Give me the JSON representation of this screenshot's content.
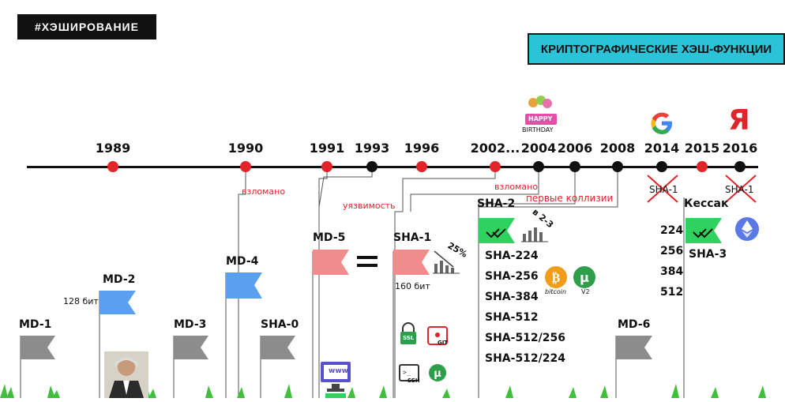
{
  "hashtag": "#ХЭШИРОВАНИЕ",
  "title": "КРИПТОГРАФИЧЕСКИЕ ХЭШ-ФУНКЦИИ",
  "timeline": {
    "years": [
      "1989",
      "1990",
      "1991",
      "1993",
      "1996",
      "2002...",
      "2004",
      "2006",
      "2008",
      "2014",
      "2015",
      "2016"
    ],
    "annotations": {
      "broken_md4": "взломано",
      "vuln_md5": "уязвимость",
      "broken_sha1": "взломано",
      "collisions": "первые коллизии",
      "sha1_crossed_2014": "SHA-1",
      "sha1_crossed_2016": "SHA-1"
    },
    "birthday_top": "HAPPY",
    "birthday_bottom": "BIRTHDAY"
  },
  "algorithms": {
    "md1": "MD-1",
    "md2": "MD-2",
    "md2_bits": "128 бит",
    "md3": "MD-3",
    "md4": "MD-4",
    "sha0": "SHA-0",
    "md5": "MD-5",
    "sha1": "SHA-1",
    "sha1_bits": "160 бит",
    "sha1_percent": "25%",
    "sha2": "SHA-2",
    "sha2_growth": "в 2-3",
    "sha2_variants": [
      "SHA-224",
      "SHA-256",
      "SHA-384",
      "SHA-512",
      "SHA-512/256",
      "SHA-512/224"
    ],
    "bitcoin_label": "bitcoin",
    "v2_label": "V2",
    "md6": "MD-6",
    "keccak": "Кессак",
    "sha3": "SHA-3",
    "sha3_sizes": [
      "224",
      "256",
      "384",
      "512"
    ],
    "equals": "=",
    "ssl": "SSL",
    "git": "GIT",
    "ssh": "SSH",
    "www": "www"
  },
  "colors": {
    "red": "#e0242a",
    "flag_gray": "#8c8c8c",
    "flag_blue": "#5a9ff0",
    "flag_pink": "#f28b8b",
    "flag_green": "#2fd15f",
    "title_bg": "#2bc3d8"
  }
}
